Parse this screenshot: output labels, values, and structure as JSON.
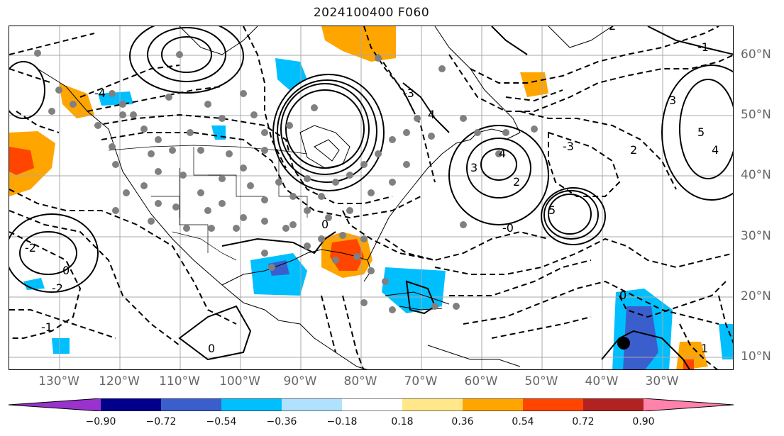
{
  "title": "2024100400 F060",
  "lon_labels": [
    "130°W",
    "120°W",
    "110°W",
    "100°W",
    "90°W",
    "80°W",
    "70°W",
    "60°W",
    "50°W",
    "40°W",
    "30°W"
  ],
  "lat_labels": [
    "60°N",
    "50°N",
    "40°N",
    "30°N",
    "20°N",
    "10°N"
  ],
  "contour_labels": {
    "zero_a": "0",
    "zero_b": "0",
    "zero_c": "0",
    "zero_d": "0",
    "m1": "-1",
    "m2": "-2",
    "m3": "-3",
    "p1": "1",
    "p2": "2",
    "p3": "3",
    "p4": "4",
    "p5": "5",
    "n1": "-1",
    "n2": "-2",
    "n4": "-4",
    "mzero": "-0"
  },
  "colorbar": {
    "colors": [
      "#9a32cd",
      "#00008b",
      "#3a5fcd",
      "#00bfff",
      "#b0e2ff",
      "#ffffff",
      "#ffe78a",
      "#ffa500",
      "#ff4500",
      "#b22222",
      "#ff82ab"
    ],
    "ticks": [
      "−0.90",
      "−0.72",
      "−0.54",
      "−0.36",
      "−0.18",
      "0.18",
      "0.36",
      "0.54",
      "0.72",
      "0.90"
    ]
  }
}
